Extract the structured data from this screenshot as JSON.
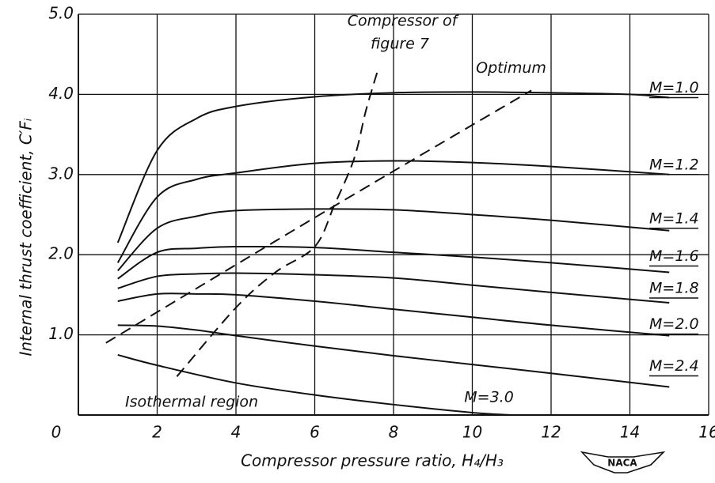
{
  "chart_data": {
    "type": "line",
    "xlabel": "Compressor pressure ratio, H₄/H₃",
    "ylabel": "Internal thrust coefficient, C′Fᵢ",
    "xlim": [
      0,
      16
    ],
    "ylim": [
      0,
      5
    ],
    "xticks": [
      0,
      2,
      4,
      6,
      8,
      10,
      12,
      14,
      16
    ],
    "yticks": [
      {
        "value": 1,
        "label": "1.0"
      },
      {
        "value": 2,
        "label": "2.0"
      },
      {
        "value": 3,
        "label": "3.0"
      },
      {
        "value": 4,
        "label": "4.0"
      },
      {
        "value": 5,
        "label": "5.0"
      }
    ],
    "grid": true,
    "series": [
      {
        "name": "M=1.0",
        "color": "#111",
        "x": [
          1,
          2,
          3,
          4,
          6,
          8,
          10,
          12,
          14,
          15
        ],
        "values": [
          2.15,
          3.3,
          3.7,
          3.85,
          3.97,
          4.02,
          4.03,
          4.02,
          4.0,
          3.96
        ]
      },
      {
        "name": "M=1.2",
        "color": "#111",
        "x": [
          1,
          2,
          3,
          4,
          6,
          8,
          10,
          12,
          15
        ],
        "values": [
          1.9,
          2.72,
          2.94,
          3.02,
          3.14,
          3.17,
          3.15,
          3.1,
          3.0
        ]
      },
      {
        "name": "M=1.4",
        "color": "#111",
        "x": [
          1,
          2,
          3,
          4,
          6,
          8,
          10,
          12,
          15
        ],
        "values": [
          1.8,
          2.33,
          2.48,
          2.55,
          2.57,
          2.56,
          2.5,
          2.43,
          2.3
        ]
      },
      {
        "name": "M=1.6",
        "color": "#111",
        "x": [
          1,
          2,
          3,
          4,
          6,
          8,
          10,
          12,
          15
        ],
        "values": [
          1.7,
          2.03,
          2.08,
          2.1,
          2.09,
          2.03,
          1.97,
          1.9,
          1.78
        ]
      },
      {
        "name": "M=1.8",
        "color": "#111",
        "x": [
          1,
          2,
          3,
          4,
          6,
          8,
          10,
          12,
          15
        ],
        "values": [
          1.58,
          1.73,
          1.76,
          1.77,
          1.75,
          1.71,
          1.62,
          1.53,
          1.4
        ]
      },
      {
        "name": "M=2.0",
        "color": "#111",
        "x": [
          1,
          2,
          3,
          4,
          6,
          8,
          10,
          12,
          15
        ],
        "values": [
          1.42,
          1.51,
          1.51,
          1.5,
          1.42,
          1.32,
          1.22,
          1.12,
          0.99
        ]
      },
      {
        "name": "M=2.4",
        "color": "#111",
        "x": [
          1,
          2,
          3,
          4,
          6,
          8,
          10,
          12,
          15
        ],
        "values": [
          1.12,
          1.11,
          1.06,
          0.99,
          0.86,
          0.74,
          0.63,
          0.52,
          0.35
        ]
      },
      {
        "name": "M=3.0",
        "color": "#111",
        "x": [
          1,
          2,
          4,
          6,
          8,
          10,
          11
        ],
        "values": [
          0.75,
          0.62,
          0.4,
          0.25,
          0.13,
          0.03,
          0
        ]
      },
      {
        "color": "#111",
        "dashed": true,
        "x": [
          2.5,
          4,
          5,
          6,
          6.5,
          7,
          7.3,
          7.6
        ],
        "values": [
          0.48,
          1.34,
          1.78,
          2.1,
          2.62,
          3.2,
          3.8,
          4.3
        ]
      },
      {
        "name": "Optimum",
        "color": "#111",
        "dashed": true,
        "x": [
          0.7,
          6.3,
          11.5
        ],
        "values": [
          0.9,
          2.55,
          4.05
        ]
      }
    ],
    "annotations": {
      "compressor_label": [
        "Compressor of",
        "figure 7"
      ],
      "isothermal": "Isothermal region"
    },
    "logo_text": "NACA"
  }
}
